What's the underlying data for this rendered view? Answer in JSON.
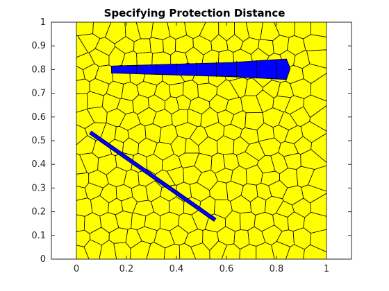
{
  "chart_data": {
    "type": "patch",
    "title": "Specifying Protection Distance",
    "xlabel": "",
    "ylabel": "",
    "xlim": [
      -0.1,
      1.1
    ],
    "ylim": [
      0,
      1
    ],
    "xticks": [
      0,
      0.2,
      0.4,
      0.6,
      0.8,
      1
    ],
    "yticks": [
      0,
      0.1,
      0.2,
      0.3,
      0.4,
      0.5,
      0.6,
      0.7,
      0.8,
      0.9,
      1
    ],
    "domain": {
      "x": [
        0,
        1
      ],
      "y": [
        0,
        1
      ]
    },
    "fill_color": "#ffff00",
    "edge_color": "#000000",
    "feature_color": "#0000ff",
    "grid": false,
    "line_feature": {
      "x": [
        0.055,
        0.555
      ],
      "y": [
        0.535,
        0.165
      ]
    },
    "band_feature": {
      "outline": [
        [
          0.14,
          0.785
        ],
        [
          0.62,
          0.77
        ],
        [
          0.84,
          0.758
        ],
        [
          0.855,
          0.805
        ],
        [
          0.84,
          0.845
        ],
        [
          0.62,
          0.83
        ],
        [
          0.14,
          0.815
        ]
      ]
    }
  }
}
